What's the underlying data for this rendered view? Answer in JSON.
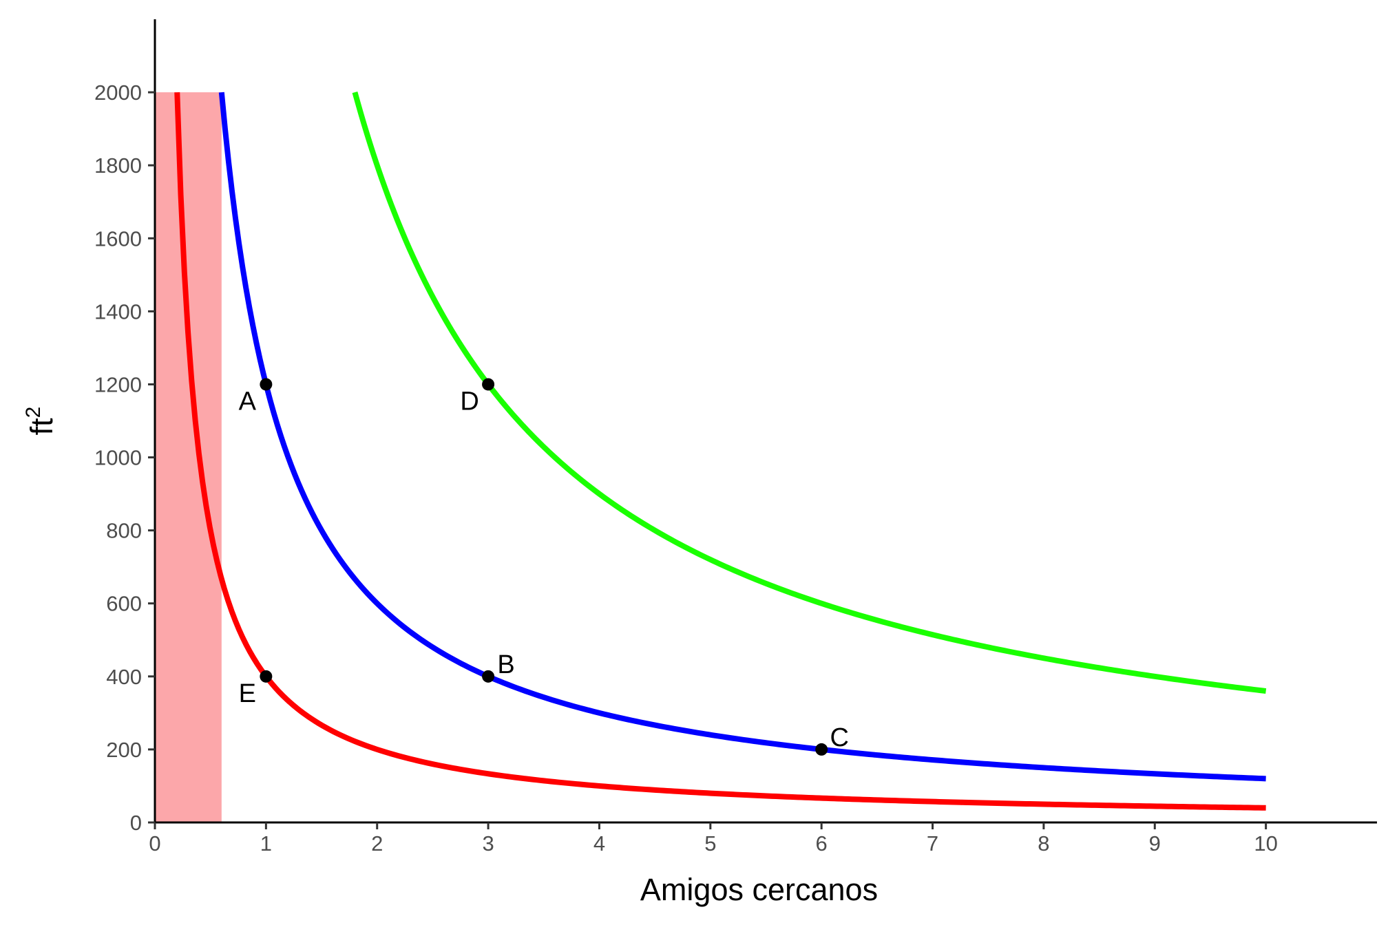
{
  "chart_data": {
    "type": "line",
    "title": "",
    "xlabel": "Amigos cercanos",
    "ylabel_base": "ft",
    "ylabel_sup": "2",
    "xlim": [
      0,
      11
    ],
    "ylim": [
      0,
      2200
    ],
    "x_ticks": [
      0,
      1,
      2,
      3,
      4,
      5,
      6,
      7,
      8,
      9,
      10
    ],
    "y_ticks": [
      0,
      200,
      400,
      600,
      800,
      1000,
      1200,
      1400,
      1600,
      1800,
      2000
    ],
    "grid": false,
    "legend": "none",
    "shaded_region": {
      "x": [
        0,
        0.6
      ],
      "y": [
        0,
        2000
      ],
      "color": "#fca7aa"
    },
    "series": [
      {
        "product": 400,
        "x_range": [
          0.2,
          10
        ],
        "color": "#ff0000"
      },
      {
        "product": 1200,
        "x_range": [
          0.6,
          10
        ],
        "color": "#0000ff"
      },
      {
        "product": 3600,
        "x_range": [
          1.8,
          10
        ],
        "color": "#1aff00"
      }
    ],
    "points": [
      {
        "label": "A",
        "x": 1,
        "y": 1200,
        "label_side": "left"
      },
      {
        "label": "B",
        "x": 3,
        "y": 400,
        "label_side": "right"
      },
      {
        "label": "C",
        "x": 6,
        "y": 200,
        "label_side": "right"
      },
      {
        "label": "D",
        "x": 3,
        "y": 1200,
        "label_side": "left"
      },
      {
        "label": "E",
        "x": 1,
        "y": 400,
        "label_side": "left"
      }
    ]
  }
}
